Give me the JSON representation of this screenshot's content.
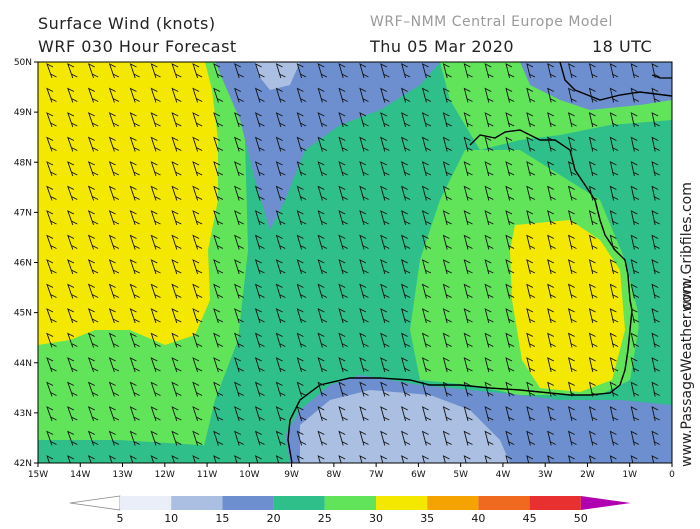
{
  "header": {
    "title_line1": "Surface Wind (knots)",
    "title_line2": "WRF 030 Hour Forecast",
    "model_name": "WRF–NMM Central Europe Model",
    "valid_date": "Thu 05 Mar 2020",
    "valid_time": "18 UTC"
  },
  "credit": {
    "site1": "www.Gribfiles.com",
    "site2": "www.PassageWeather.com"
  },
  "map": {
    "lat_labels": [
      "50N",
      "49N",
      "48N",
      "47N",
      "46N",
      "45N",
      "44N",
      "43N",
      "42N"
    ],
    "lon_labels": [
      "15W",
      "14W",
      "13W",
      "12W",
      "11W",
      "10W",
      "9W",
      "8W",
      "7W",
      "6W",
      "5W",
      "4W",
      "3W",
      "2W",
      "1W",
      "0"
    ]
  },
  "colorbar": {
    "labels": [
      "5",
      "10",
      "15",
      "20",
      "25",
      "30",
      "35",
      "40",
      "45",
      "50"
    ],
    "colors": [
      "#e9eef8",
      "#aabfe2",
      "#6d8fd0",
      "#2fbf8a",
      "#62e45a",
      "#f5e800",
      "#f5a300",
      "#ef6a1e",
      "#e83030",
      "#b0003a",
      "#b000b0"
    ]
  },
  "palette": {
    "speed_10_15": "#aabfe2",
    "speed_15_20": "#6d8fd0",
    "speed_20_25": "#2fbf8a",
    "speed_25_30": "#62e45a",
    "speed_30_35": "#f5e800",
    "land": "#aabfe2"
  }
}
